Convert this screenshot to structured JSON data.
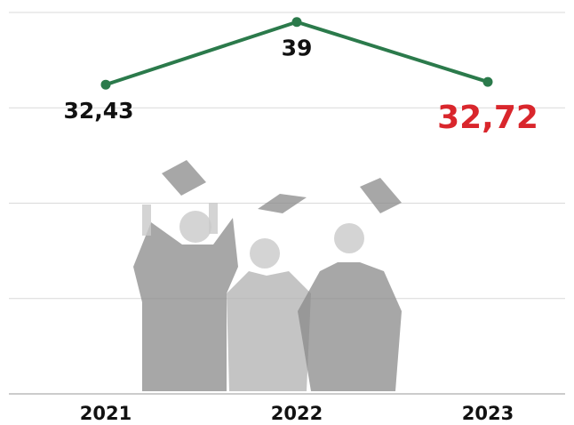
{
  "chart_data": {
    "type": "line",
    "categories": [
      "2021",
      "2022",
      "2023"
    ],
    "series": [
      {
        "color": "#2b7a4b",
        "values": [
          32.43,
          39,
          32.72
        ],
        "value_labels": [
          "32,43",
          "39",
          "32,72"
        ],
        "label_colors": [
          "#111111",
          "#111111",
          "#d9262c"
        ]
      }
    ],
    "ylim": [
      0,
      40
    ],
    "yticks": [
      0,
      10,
      20,
      30,
      40
    ],
    "grid": true
  }
}
